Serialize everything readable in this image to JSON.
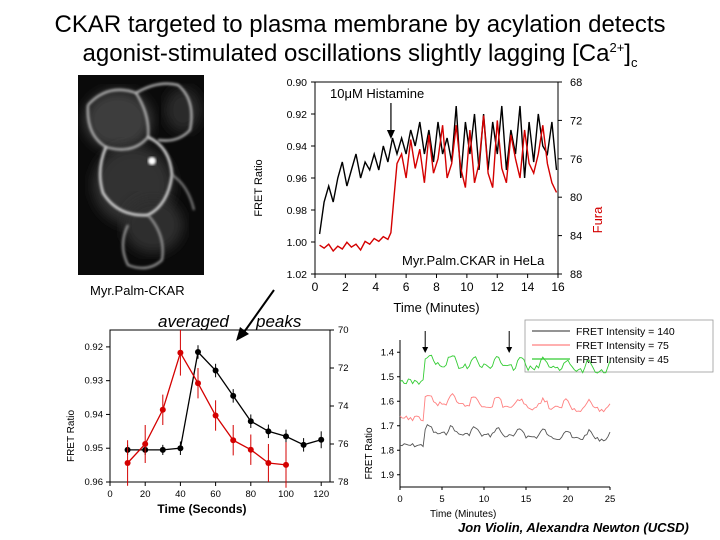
{
  "slide": {
    "title_line1": "CKAR targeted to plasma membrane by acylation detects",
    "title_line2": "agonist-stimulated oscillations slightly lagging [Ca",
    "title_sup": "2+",
    "title_close": "]",
    "title_sub": "c",
    "cell_caption": "Myr.Palm-CKAR",
    "averaged_label": "averaged",
    "peaks_label": "peaks",
    "credit": "Jon Violin, Alexandra Newton (UCSD)"
  },
  "colors": {
    "black_series": "#000000",
    "red_series": "#d40000",
    "green_series": "#33cc33",
    "pink_series": "#ff8080",
    "gray_series": "#555555"
  },
  "chart_data": [
    {
      "type": "line",
      "annotation": "10μM Histamine",
      "inset_label": "Myr.Palm.CKAR in HeLa",
      "xlabel": "Time (Minutes)",
      "ylabel_left": "FRET Ratio",
      "ylabel_right": "Fura",
      "xlim": [
        0,
        16
      ],
      "ylim_left": [
        1.02,
        0.9
      ],
      "ylim_right": [
        88,
        68
      ],
      "x_ticks": [
        0,
        2,
        4,
        6,
        8,
        10,
        12,
        14,
        16
      ],
      "y_left_ticks": [
        0.9,
        0.92,
        0.94,
        0.96,
        0.98,
        1.0,
        1.02
      ],
      "y_right_ticks": [
        68,
        72,
        76,
        80,
        84,
        88
      ],
      "arrow_x": 5,
      "series": [
        {
          "color_key": "black_series",
          "axis": "left",
          "x": [
            0.3,
            0.6,
            0.9,
            1.2,
            1.5,
            1.8,
            2.1,
            2.4,
            2.7,
            3.0,
            3.3,
            3.6,
            3.9,
            4.2,
            4.5,
            4.8,
            5.1,
            5.4,
            5.7,
            6.0,
            6.3,
            6.6,
            6.9,
            7.2,
            7.5,
            7.8,
            8.1,
            8.4,
            8.7,
            9.0,
            9.3,
            9.6,
            9.9,
            10.2,
            10.5,
            10.8,
            11.1,
            11.4,
            11.7,
            12.0,
            12.3,
            12.6,
            12.9,
            13.2,
            13.5,
            13.8,
            14.1,
            14.4,
            14.7,
            15.0,
            15.3,
            15.6,
            15.9
          ],
          "y": [
            0.995,
            0.975,
            0.965,
            0.975,
            0.96,
            0.95,
            0.965,
            0.955,
            0.945,
            0.96,
            0.95,
            0.955,
            0.945,
            0.955,
            0.94,
            0.95,
            0.935,
            0.945,
            0.935,
            0.945,
            0.93,
            0.94,
            0.925,
            0.945,
            0.93,
            0.95,
            0.925,
            0.945,
            0.935,
            0.95,
            0.915,
            0.96,
            0.925,
            0.945,
            0.92,
            0.955,
            0.92,
            0.955,
            0.925,
            0.945,
            0.915,
            0.955,
            0.93,
            0.945,
            0.915,
            0.96,
            0.925,
            0.95,
            0.92,
            0.94,
            0.945,
            0.925,
            0.955
          ]
        },
        {
          "color_key": "red_series",
          "axis": "right",
          "x": [
            0.3,
            0.6,
            0.9,
            1.2,
            1.5,
            1.8,
            2.1,
            2.4,
            2.7,
            3.0,
            3.3,
            3.6,
            3.9,
            4.2,
            4.5,
            4.8,
            5.0,
            5.2,
            5.4,
            5.7,
            6.0,
            6.3,
            6.6,
            6.9,
            7.2,
            7.5,
            7.8,
            8.1,
            8.4,
            8.7,
            9.0,
            9.3,
            9.6,
            9.9,
            10.2,
            10.5,
            10.8,
            11.1,
            11.4,
            11.7,
            12.0,
            12.3,
            12.6,
            12.9,
            13.2,
            13.5,
            13.8,
            14.1,
            14.4,
            14.7,
            15.0,
            15.3,
            15.6,
            15.9
          ],
          "y": [
            85.0,
            85.3,
            84.9,
            85.6,
            85.1,
            85.4,
            84.7,
            85.2,
            84.9,
            85.5,
            84.6,
            84.9,
            84.3,
            84.6,
            84.1,
            84.4,
            83.7,
            80.0,
            76.5,
            75.5,
            78.0,
            74.0,
            77.0,
            75.0,
            78.5,
            73.5,
            77.5,
            76.0,
            72.5,
            78.0,
            76.5,
            72.5,
            77.0,
            79.0,
            73.0,
            78.5,
            76.5,
            71.5,
            77.5,
            79.0,
            72.0,
            77.0,
            78.5,
            73.5,
            76.0,
            78.0,
            73.0,
            76.5,
            77.5,
            75.5,
            72.5,
            76.5,
            78.5,
            79.5
          ]
        }
      ]
    },
    {
      "type": "line",
      "xlabel": "Time (Seconds)",
      "ylabel_left": "FRET Ratio",
      "xlim": [
        0,
        125
      ],
      "ylim_left": [
        0.96,
        0.915
      ],
      "ylim_right": [
        78,
        70
      ],
      "x_ticks": [
        0,
        20,
        40,
        60,
        80,
        100,
        120
      ],
      "y_left_ticks": [
        0.92,
        0.93,
        0.94,
        0.95,
        0.96
      ],
      "y_right_ticks": [
        70,
        72,
        74,
        76,
        78
      ],
      "series": [
        {
          "color_key": "black_series",
          "axis": "left",
          "x": [
            10,
            20,
            30,
            40,
            50,
            60,
            70,
            80,
            90,
            100,
            110,
            120
          ],
          "y": [
            0.9505,
            0.9505,
            0.9505,
            0.95,
            0.9215,
            0.927,
            0.9345,
            0.942,
            0.945,
            0.9465,
            0.949,
            0.9475
          ],
          "err": [
            0.0015,
            0.0015,
            0.0015,
            0.002,
            0.002,
            0.002,
            0.002,
            0.002,
            0.002,
            0.002,
            0.002,
            0.0025
          ]
        },
        {
          "color_key": "red_series",
          "axis": "right",
          "x": [
            10,
            20,
            30,
            40,
            50,
            60,
            70,
            80,
            90,
            100
          ],
          "y": [
            77.0,
            76.0,
            74.2,
            71.2,
            72.8,
            74.5,
            75.8,
            76.3,
            77.0,
            77.1
          ],
          "err": [
            1.2,
            1.0,
            0.8,
            1.2,
            0.8,
            0.8,
            0.8,
            0.8,
            1.0,
            1.2
          ]
        }
      ]
    },
    {
      "type": "line",
      "xlabel": "Time (Minutes)",
      "ylabel_left": "FRET Ratio",
      "xlim": [
        0,
        25
      ],
      "ylim_left": [
        1.95,
        1.35
      ],
      "x_ticks": [
        0,
        5,
        10,
        15,
        20,
        25
      ],
      "y_left_ticks": [
        1.4,
        1.5,
        1.6,
        1.7,
        1.8,
        1.9
      ],
      "arrows_x": [
        3,
        13
      ],
      "legend_position": "top-right",
      "series": [
        {
          "name": "FRET Intensity = 140",
          "color_key": "gray_series",
          "base": 1.78,
          "jump": 0.05,
          "noise": 0.008
        },
        {
          "name": "FRET Intensity = 75",
          "color_key": "pink_series",
          "base": 1.67,
          "jump": 0.06,
          "noise": 0.01
        },
        {
          "name": "FRET Intensity = 45",
          "color_key": "green_series",
          "base": 1.52,
          "jump": 0.07,
          "noise": 0.012
        }
      ]
    }
  ]
}
